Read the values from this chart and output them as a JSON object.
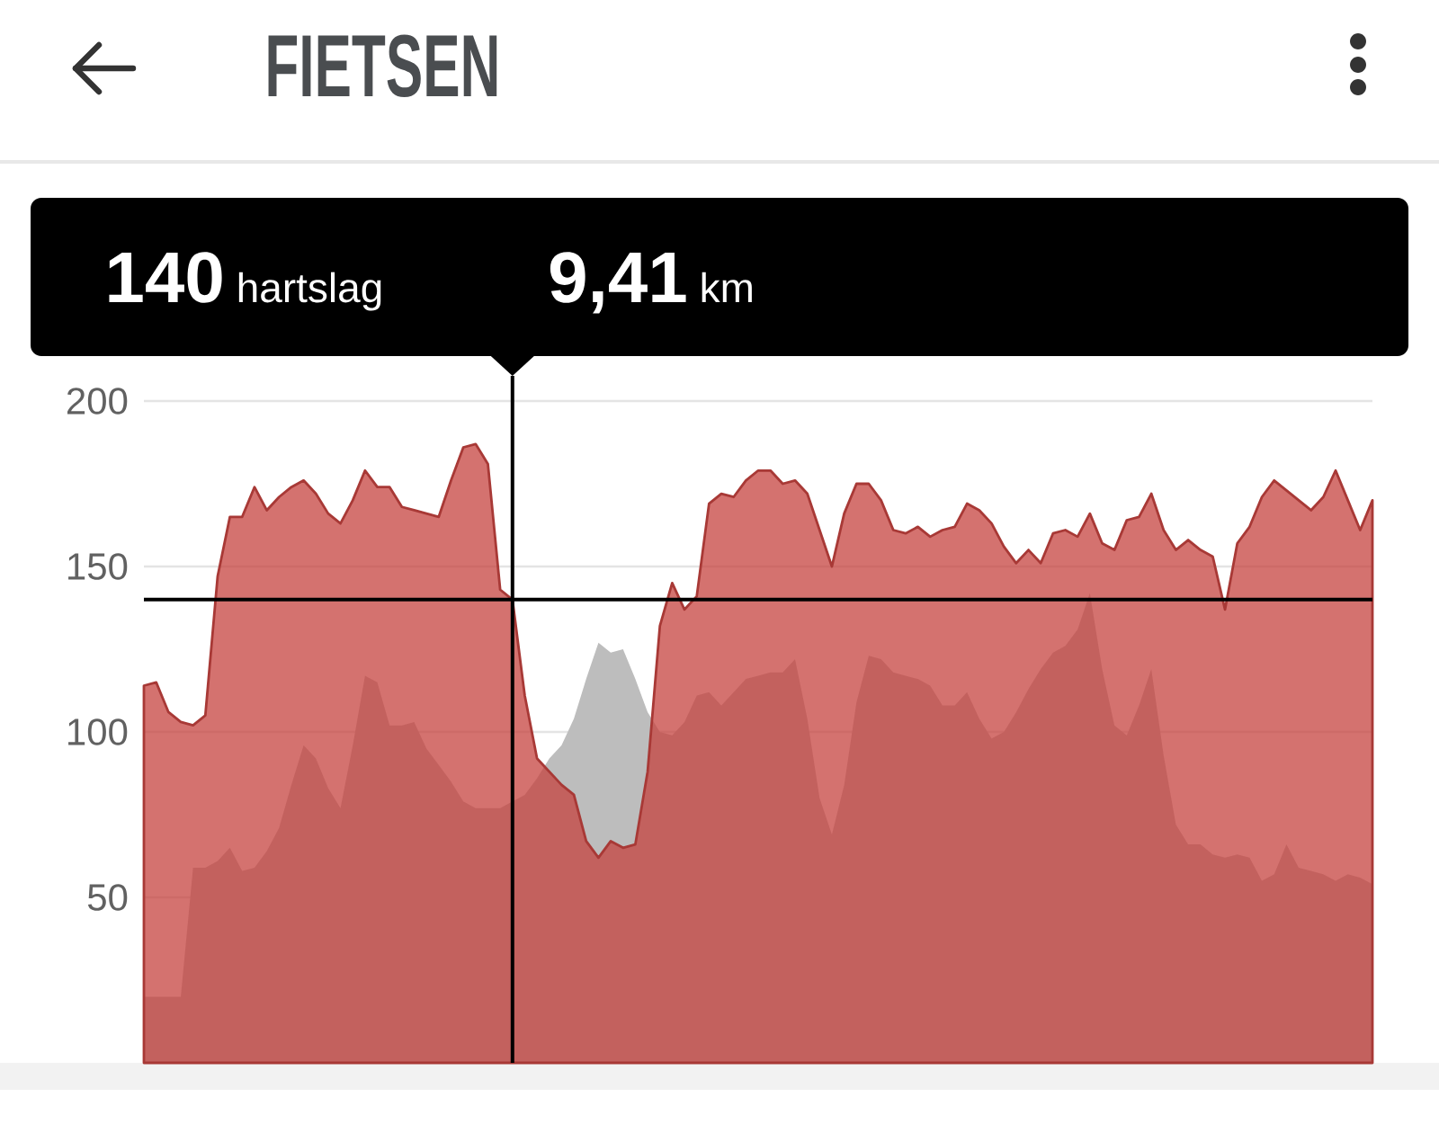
{
  "chart_data": {
    "type": "area",
    "title": "FIETSEN",
    "categories": [
      null,
      null,
      null,
      null,
      null,
      null,
      null,
      null,
      null,
      null,
      null,
      null,
      null,
      null,
      null,
      null,
      null,
      null,
      null,
      null,
      null,
      null,
      null,
      null,
      null,
      null,
      null,
      null,
      null,
      null,
      null,
      null,
      null,
      null,
      null,
      null,
      null,
      null,
      null,
      null,
      null,
      null,
      null,
      null,
      null,
      null,
      null,
      null,
      null,
      null,
      null,
      null,
      null,
      null,
      null,
      null,
      null,
      null,
      null,
      null,
      null,
      null,
      null,
      null,
      null,
      null,
      null,
      null,
      null,
      null,
      null,
      null,
      null,
      null,
      null,
      null,
      null,
      null,
      null,
      null,
      null,
      null,
      null,
      null,
      null,
      null,
      null,
      null,
      null,
      null,
      null,
      null,
      null,
      null,
      null,
      null,
      null,
      null,
      null,
      null,
      null
    ],
    "series": [
      {
        "color": "#bdbdbd",
        "values": [
          20,
          20,
          20,
          20,
          59,
          59,
          61,
          65,
          58,
          59,
          64,
          71,
          84,
          96,
          92,
          83,
          77,
          96,
          117,
          115,
          102,
          102,
          103,
          95,
          90,
          85,
          79,
          77,
          77,
          77,
          79,
          81,
          86,
          92,
          96,
          104,
          116,
          127,
          124,
          125,
          116,
          106,
          100,
          99,
          103,
          111,
          112,
          108,
          112,
          116,
          117,
          118,
          118,
          122,
          104,
          80,
          69,
          84,
          109,
          123,
          122,
          118,
          117,
          116,
          114,
          108,
          108,
          112,
          104,
          98,
          100,
          106,
          113,
          119,
          124,
          126,
          131,
          142,
          119,
          102,
          99,
          108,
          119,
          93,
          72,
          66,
          66,
          63,
          62,
          63,
          62,
          55,
          57,
          66,
          59,
          58,
          57,
          55,
          57,
          56,
          54
        ]
      },
      {
        "color": "#c6433f",
        "line_style": "solid",
        "values": [
          114,
          115,
          106,
          103,
          102,
          105,
          147,
          165,
          165,
          174,
          167,
          171,
          174,
          176,
          172,
          166,
          163,
          170,
          179,
          174,
          174,
          168,
          167,
          166,
          165,
          176,
          186,
          187,
          181,
          143,
          140,
          111,
          92,
          88,
          84,
          81,
          67,
          62,
          67,
          65,
          66,
          88,
          132,
          145,
          137,
          141,
          169,
          172,
          171,
          176,
          179,
          179,
          175,
          176,
          172,
          161,
          150,
          166,
          175,
          175,
          170,
          161,
          160,
          162,
          159,
          161,
          162,
          169,
          167,
          163,
          156,
          151,
          155,
          151,
          160,
          161,
          159,
          166,
          157,
          155,
          164,
          165,
          172,
          161,
          155,
          158,
          155,
          153,
          137,
          157,
          162,
          171,
          176,
          173,
          170,
          167,
          171,
          179,
          170,
          161,
          170
        ]
      }
    ],
    "ylim": [
      0,
      200
    ],
    "yticks": [
      50,
      100,
      150,
      200
    ],
    "grid": "y",
    "ref_lines": [
      {
        "axis": "y",
        "value": 140,
        "color": "#000000"
      }
    ],
    "annotations": [
      "**140** hartslag",
      "**9,41** km"
    ]
  }
}
